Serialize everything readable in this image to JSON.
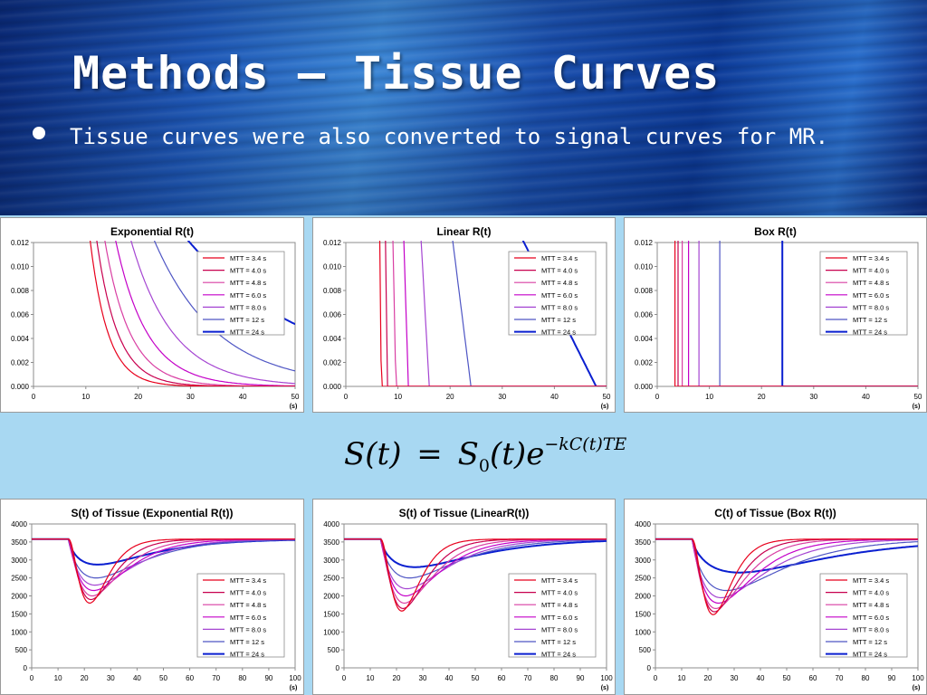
{
  "slide": {
    "title": "Methods – Tissue Curves",
    "bullet": "Tissue curves were also converted to signal curves for MR.",
    "equation": {
      "lhs": "S(t)",
      "eq": "=",
      "s": "S",
      "sub": "0",
      "rhs_mid": "(t)e",
      "exponent": "−kC(t)TE"
    }
  },
  "legend_names": [
    "MTT = 3.4 s",
    "MTT = 4.0 s",
    "MTT = 4.8 s",
    "MTT = 6.0 s",
    "MTT = 8.0 s",
    "MTT = 12 s",
    "MTT = 24 s"
  ],
  "series_colors": [
    "#e8001c",
    "#c8004f",
    "#d93fa3",
    "#c400c8",
    "#a545d2",
    "#4f56c4",
    "#0a1fd0"
  ],
  "chart_data": [
    {
      "type": "line",
      "title": "Exponential R(t)",
      "xlabel": "(s)",
      "xlim": [
        0,
        50
      ],
      "ylim": [
        0,
        0.012
      ],
      "xticks": [
        "0",
        "10",
        "20",
        "30",
        "40",
        "50"
      ],
      "yticks": [
        "0.000",
        "0.002",
        "0.004",
        "0.006",
        "0.008",
        "0.010",
        "0.012"
      ],
      "model": "exponential",
      "mtt": [
        3.4,
        4.0,
        4.8,
        6.0,
        8.0,
        12,
        24
      ],
      "legend": "upper-right"
    },
    {
      "type": "line",
      "title": "Linear R(t)",
      "xlabel": "(s)",
      "xlim": [
        0,
        50
      ],
      "ylim": [
        0,
        0.012
      ],
      "xticks": [
        "0",
        "10",
        "20",
        "30",
        "40",
        "50"
      ],
      "yticks": [
        "0.000",
        "0.002",
        "0.004",
        "0.006",
        "0.008",
        "0.010",
        "0.012"
      ],
      "model": "linear",
      "mtt": [
        3.4,
        4.0,
        4.8,
        6.0,
        8.0,
        12,
        24
      ],
      "legend": "upper-right"
    },
    {
      "type": "line",
      "title": "Box R(t)",
      "xlabel": "(s)",
      "xlim": [
        0,
        50
      ],
      "ylim": [
        0,
        0.012
      ],
      "xticks": [
        "0",
        "10",
        "20",
        "30",
        "40",
        "50"
      ],
      "yticks": [
        "0.000",
        "0.002",
        "0.004",
        "0.006",
        "0.008",
        "0.010",
        "0.012"
      ],
      "model": "box",
      "mtt": [
        3.4,
        4.0,
        4.8,
        6.0,
        8.0,
        12,
        24
      ],
      "legend": "upper-right"
    },
    {
      "type": "line",
      "title": "S(t) of Tissue (Exponential R(t))",
      "xlabel": "(s)",
      "xlim": [
        0,
        100
      ],
      "ylim": [
        0,
        4000
      ],
      "xticks": [
        "0",
        "10",
        "20",
        "30",
        "40",
        "50",
        "60",
        "70",
        "80",
        "90",
        "100"
      ],
      "yticks": [
        "0",
        "500",
        "1000",
        "1500",
        "2000",
        "2500",
        "3000",
        "3500",
        "4000"
      ],
      "model": "signal",
      "baseline": 3580,
      "minima": [
        {
          "x": 22,
          "y": 1800
        },
        {
          "x": 22.5,
          "y": 1900
        },
        {
          "x": 23,
          "y": 2000
        },
        {
          "x": 23.5,
          "y": 2150
        },
        {
          "x": 24,
          "y": 2300
        },
        {
          "x": 24.5,
          "y": 2500
        },
        {
          "x": 25,
          "y": 2870
        }
      ],
      "legend": "lower-right"
    },
    {
      "type": "line",
      "title": "S(t) of Tissue (LinearR(t))",
      "xlabel": "(s)",
      "xlim": [
        0,
        100
      ],
      "ylim": [
        0,
        4000
      ],
      "xticks": [
        "0",
        "10",
        "20",
        "30",
        "40",
        "50",
        "60",
        "70",
        "80",
        "90",
        "100"
      ],
      "yticks": [
        "0",
        "500",
        "1000",
        "1500",
        "2000",
        "2500",
        "3000",
        "3500",
        "4000"
      ],
      "model": "signal",
      "baseline": 3580,
      "minima": [
        {
          "x": 22,
          "y": 1580
        },
        {
          "x": 22.5,
          "y": 1650
        },
        {
          "x": 23,
          "y": 1800
        },
        {
          "x": 23.5,
          "y": 2000
        },
        {
          "x": 24,
          "y": 2200
        },
        {
          "x": 25,
          "y": 2500
        },
        {
          "x": 27,
          "y": 2800
        }
      ],
      "legend": "lower-right"
    },
    {
      "type": "line",
      "title": "C(t) of Tissue (Box R(t))",
      "xlabel": "(s)",
      "xlim": [
        0,
        100
      ],
      "ylim": [
        0,
        4000
      ],
      "xticks": [
        "0",
        "10",
        "20",
        "30",
        "40",
        "50",
        "60",
        "70",
        "80",
        "90",
        "100"
      ],
      "yticks": [
        "0",
        "500",
        "1000",
        "1500",
        "2000",
        "2500",
        "3000",
        "3500",
        "4000"
      ],
      "model": "signal",
      "baseline": 3580,
      "minima": [
        {
          "x": 22,
          "y": 1480
        },
        {
          "x": 22.5,
          "y": 1560
        },
        {
          "x": 23,
          "y": 1650
        },
        {
          "x": 24,
          "y": 1800
        },
        {
          "x": 25,
          "y": 1950
        },
        {
          "x": 27,
          "y": 2150
        },
        {
          "x": 32,
          "y": 2650
        }
      ],
      "legend": "lower-right"
    }
  ]
}
